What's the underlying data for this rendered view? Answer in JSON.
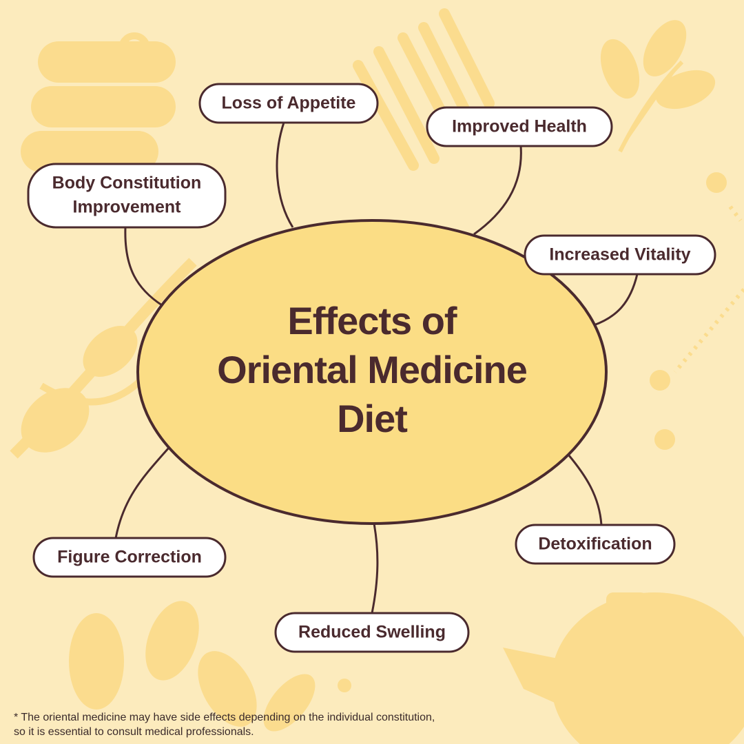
{
  "title": {
    "lines": [
      "Effects of",
      "Oriental Medicine",
      "Diet"
    ]
  },
  "nodes": [
    {
      "lines": [
        "Loss of Appetite"
      ]
    },
    {
      "lines": [
        "Improved Health"
      ]
    },
    {
      "lines": [
        "Body Constitution",
        "Improvement"
      ]
    },
    {
      "lines": [
        "Increased Vitality"
      ]
    },
    {
      "lines": [
        "Figure Correction"
      ]
    },
    {
      "lines": [
        "Detoxification"
      ]
    },
    {
      "lines": [
        "Reduced Swelling"
      ]
    }
  ],
  "footnote": {
    "lines": [
      "* The oriental medicine may have side effects depending on the individual constitution,",
      "so it is essential to consult medical professionals."
    ]
  }
}
